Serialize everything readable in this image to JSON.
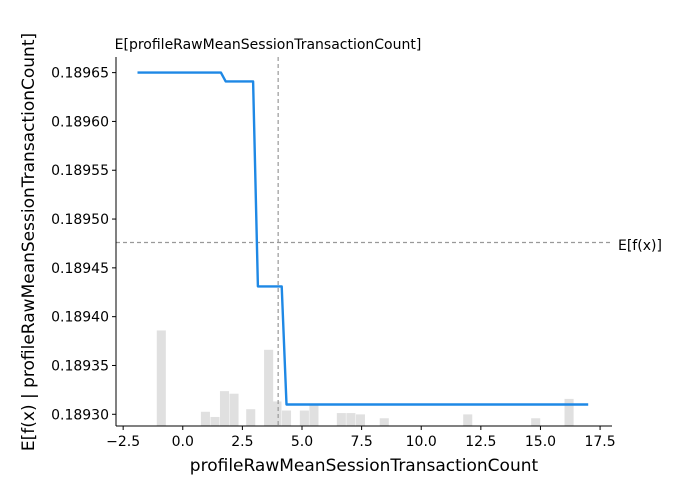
{
  "chart_data": {
    "type": "line",
    "title": "",
    "xlabel": "profileRawMeanSessionTransactionCount",
    "ylabel": "E[f(x) | profileRawMeanSessionTransactionCount]",
    "xlim": [
      -2.8,
      18.0
    ],
    "ylim": [
      0.189288,
      0.189666
    ],
    "grid": false,
    "x_ticks": [
      {
        "value": -2.5,
        "label": "−2.5"
      },
      {
        "value": 0.0,
        "label": "0.0"
      },
      {
        "value": 2.5,
        "label": "2.5"
      },
      {
        "value": 5.0,
        "label": "5.0"
      },
      {
        "value": 7.5,
        "label": "7.5"
      },
      {
        "value": 10.0,
        "label": "10.0"
      },
      {
        "value": 12.5,
        "label": "12.5"
      },
      {
        "value": 15.0,
        "label": "15.0"
      },
      {
        "value": 17.5,
        "label": "17.5"
      }
    ],
    "y_ticks": [
      {
        "value": 0.1893,
        "label": "0.18930"
      },
      {
        "value": 0.18935,
        "label": "0.18935"
      },
      {
        "value": 0.1894,
        "label": "0.18940"
      },
      {
        "value": 0.18945,
        "label": "0.18945"
      },
      {
        "value": 0.1895,
        "label": "0.18950"
      },
      {
        "value": 0.18955,
        "label": "0.18955"
      },
      {
        "value": 0.1896,
        "label": "0.18960"
      },
      {
        "value": 0.18965,
        "label": "0.18965"
      }
    ],
    "series": [
      {
        "color": "#1e88e5",
        "x": [
          -1.9,
          1.6,
          1.8,
          2.95,
          3.15,
          4.15,
          4.35,
          17.0
        ],
        "y": [
          0.18965,
          0.18965,
          0.189641,
          0.189641,
          0.189431,
          0.189431,
          0.18931,
          0.18931
        ]
      }
    ],
    "expected_feature": {
      "value": 4.0,
      "label": "E[profileRawMeanSessionTransactionCount]"
    },
    "expected_output": {
      "value": 0.189476,
      "label": "E[f(x)]"
    },
    "histogram": {
      "color": "#e0e0e0",
      "bin_width": 0.38,
      "bins": [
        {
          "x": -0.9,
          "h": 0.74
        },
        {
          "x": 0.95,
          "h": 0.11
        },
        {
          "x": 1.35,
          "h": 0.07
        },
        {
          "x": 1.75,
          "h": 0.27
        },
        {
          "x": 2.15,
          "h": 0.25
        },
        {
          "x": 2.85,
          "h": 0.13
        },
        {
          "x": 3.6,
          "h": 0.59
        },
        {
          "x": 3.95,
          "h": 0.19
        },
        {
          "x": 4.35,
          "h": 0.12
        },
        {
          "x": 5.1,
          "h": 0.12
        },
        {
          "x": 5.5,
          "h": 0.17
        },
        {
          "x": 6.65,
          "h": 0.1
        },
        {
          "x": 7.05,
          "h": 0.1
        },
        {
          "x": 7.45,
          "h": 0.09
        },
        {
          "x": 8.45,
          "h": 0.06
        },
        {
          "x": 11.95,
          "h": 0.09
        },
        {
          "x": 14.8,
          "h": 0.06
        },
        {
          "x": 16.2,
          "h": 0.21
        }
      ]
    }
  }
}
